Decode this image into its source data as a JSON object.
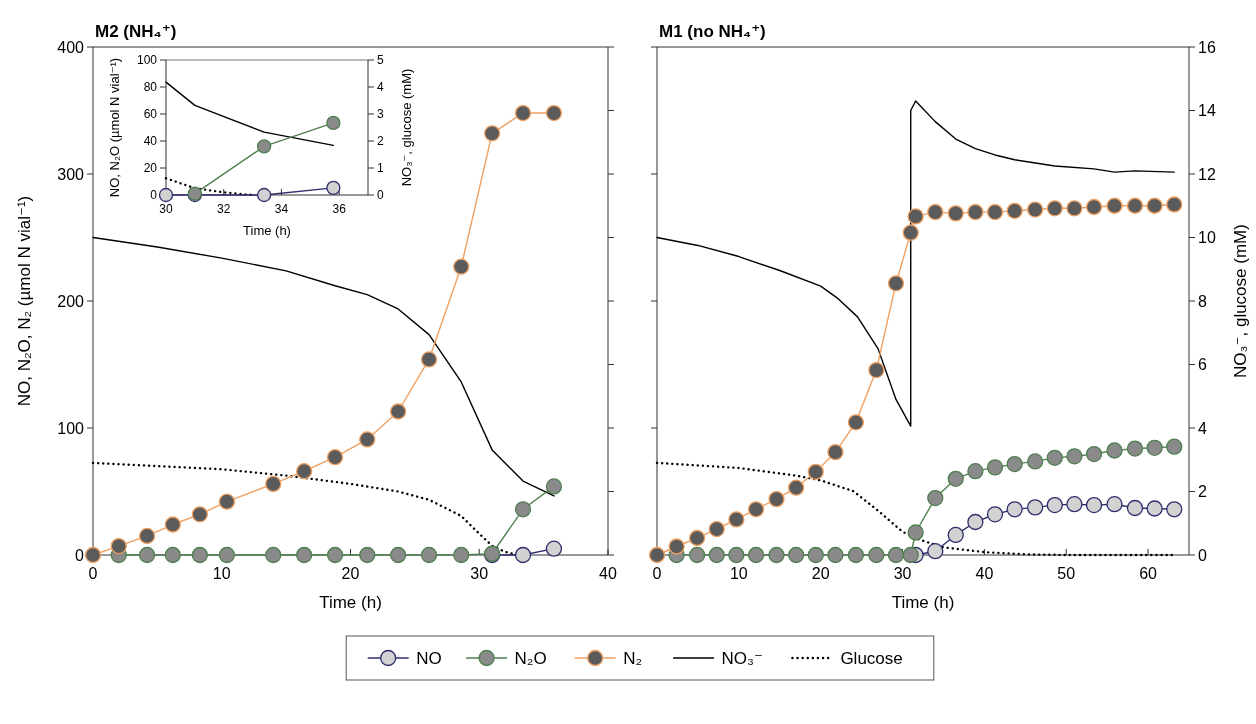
{
  "chart_data": [
    {
      "type": "line",
      "title": "M2 (NH₄⁺)",
      "xlabel": "Time (h)",
      "ylabel": "NO, N₂O, N₂ (µmol N vial⁻¹)",
      "xlim": [
        0,
        40
      ],
      "xticks": [
        0,
        10,
        20,
        30,
        40
      ],
      "ylim": [
        0,
        400
      ],
      "yticks": [
        0,
        100,
        200,
        300,
        400
      ],
      "y2lim": [
        0,
        16
      ],
      "tick_labels": "xy",
      "legend": "bottom",
      "series": [
        {
          "name": "NO",
          "color": "#2e2e6e",
          "marker": "circle",
          "x": [
            31.0,
            33.4,
            35.8
          ],
          "values": [
            0,
            0,
            5
          ]
        },
        {
          "name": "N₂O",
          "color": "#4f7f4f",
          "marker": "circle",
          "x": [
            2.0,
            4.2,
            6.2,
            8.3,
            10.4,
            14.0,
            16.4,
            18.8,
            21.3,
            23.7,
            26.1,
            28.6,
            31.0,
            33.4,
            35.8
          ],
          "values": [
            0,
            0,
            0,
            0,
            0,
            0,
            0,
            0,
            0,
            0,
            0,
            0,
            1,
            36,
            54
          ]
        },
        {
          "name": "N₂",
          "color": "#f0a060",
          "marker": "circle",
          "x": [
            0,
            2.0,
            4.2,
            6.2,
            8.3,
            10.4,
            14.0,
            16.4,
            18.8,
            21.3,
            23.7,
            26.1,
            28.6,
            31.0,
            33.4,
            35.8
          ],
          "values": [
            0,
            7,
            15,
            24,
            32,
            42,
            56,
            66,
            77,
            91,
            113,
            154,
            227,
            332,
            348,
            348
          ]
        },
        {
          "name": "NO₃⁻",
          "color": "#000000",
          "marker": "none",
          "line_style": "solid",
          "axis": "y2",
          "x": [
            0,
            5,
            10,
            15,
            18.8,
            21.3,
            23.7,
            26.1,
            28.6,
            31.0,
            33.4,
            35.8
          ],
          "values": [
            10.0,
            9.7,
            9.35,
            8.95,
            8.48,
            8.2,
            7.75,
            6.94,
            5.45,
            3.31,
            2.33,
            1.86
          ]
        },
        {
          "name": "Glucose",
          "color": "#000000",
          "marker": "none",
          "line_style": "dotted",
          "axis": "y2",
          "x": [
            0,
            10,
            15,
            20,
            23.7,
            26.1,
            28.6,
            30,
            31,
            32,
            33
          ],
          "values": [
            2.9,
            2.7,
            2.5,
            2.24,
            2.0,
            1.74,
            1.23,
            0.67,
            0.29,
            0.1,
            0
          ]
        }
      ]
    },
    {
      "type": "line",
      "title": "M1 (no NH₄⁺)",
      "xlabel": "Time (h)",
      "y2label": "NO₃⁻, glucose (mM)",
      "xlim": [
        0,
        65
      ],
      "xticks": [
        0,
        10,
        20,
        30,
        40,
        50,
        60
      ],
      "ylim": [
        0,
        400
      ],
      "y2lim": [
        0,
        16
      ],
      "y2ticks": [
        0,
        2,
        4,
        6,
        8,
        10,
        12,
        14,
        16
      ],
      "series": [
        {
          "color": "#2e2e6e",
          "marker": "circle",
          "x": [
            31.6,
            34.0,
            36.5,
            38.9,
            41.3,
            43.7,
            46.2,
            48.6,
            51.0,
            53.4,
            55.9,
            58.4,
            60.8,
            63.2
          ],
          "values": [
            0,
            3,
            15.8,
            26,
            32,
            36,
            37.5,
            39.3,
            40,
            39.3,
            40,
            37,
            36.6,
            36
          ]
        },
        {
          "color": "#4f7f4f",
          "marker": "circle",
          "x": [
            2.4,
            4.9,
            7.3,
            9.7,
            12.1,
            14.6,
            17.0,
            19.4,
            21.8,
            24.3,
            26.8,
            29.2,
            31.0,
            31.6,
            34.0,
            36.5,
            38.9,
            41.3,
            43.7,
            46.2,
            48.6,
            51.0,
            53.4,
            55.9,
            58.4,
            60.8,
            63.2
          ],
          "values": [
            0,
            0,
            0,
            0,
            0,
            0,
            0,
            0,
            0,
            0,
            0,
            0,
            0,
            17.7,
            44.8,
            60,
            66,
            69,
            71.6,
            73.7,
            76.5,
            77.7,
            79.5,
            82.3,
            83.8,
            84.4,
            85.3
          ]
        },
        {
          "color": "#f0a060",
          "marker": "circle",
          "x": [
            0,
            2.4,
            4.9,
            7.3,
            9.7,
            12.1,
            14.6,
            17.0,
            19.4,
            21.8,
            24.3,
            26.8,
            29.2,
            31.0,
            31.6,
            34.0,
            36.5,
            38.9,
            41.3,
            43.7,
            46.2,
            48.6,
            51.0,
            53.4,
            55.9,
            58.4,
            60.8,
            63.2
          ],
          "values": [
            0,
            6.7,
            13.4,
            20.4,
            28,
            36,
            44,
            53,
            65.5,
            81,
            104.5,
            145.6,
            213.9,
            253.8,
            266.6,
            270,
            269,
            270,
            270,
            271,
            272,
            273,
            273,
            274,
            275,
            275,
            275,
            276
          ]
        },
        {
          "color": "#000000",
          "marker": "none",
          "line_style": "solid",
          "axis": "y2",
          "x": [
            0,
            5,
            10,
            15,
            20,
            22,
            24.5,
            27,
            29.2,
            31.0,
            31.0,
            31.6,
            34.0,
            36.5,
            38.9,
            41.3,
            43.7,
            48.6,
            53.4,
            55.9,
            58.4,
            63.2
          ],
          "values": [
            10.0,
            9.75,
            9.4,
            8.96,
            8.47,
            8.1,
            7.5,
            6.5,
            4.9,
            4.06,
            14.0,
            14.3,
            13.65,
            13.1,
            12.8,
            12.6,
            12.45,
            12.25,
            12.16,
            12.06,
            12.1,
            12.06
          ]
        },
        {
          "color": "#000000",
          "marker": "none",
          "line_style": "dotted",
          "axis": "y2",
          "x": [
            0,
            10,
            17,
            20,
            24,
            27,
            30,
            32,
            35,
            40,
            45,
            50,
            63.2
          ],
          "values": [
            2.9,
            2.74,
            2.5,
            2.35,
            2.01,
            1.4,
            0.73,
            0.49,
            0.24,
            0.09,
            0.02,
            0,
            0
          ]
        }
      ]
    },
    {
      "type": "line",
      "xlabel": "Time (h)",
      "ylabel": "NO, N₂O (µmol N vial⁻¹)",
      "y2label": "NO₃⁻, glucose (mM)",
      "xlim": [
        30,
        37
      ],
      "xticks": [
        30,
        32,
        34,
        36
      ],
      "ylim": [
        0,
        100
      ],
      "yticks": [
        0,
        20,
        40,
        60,
        80,
        100
      ],
      "y2lim": [
        0,
        5
      ],
      "y2ticks": [
        0,
        1,
        2,
        3,
        4,
        5
      ],
      "series": [
        {
          "color": "#2e2e6e",
          "marker": "circle",
          "x": [
            30,
            31.0,
            33.4,
            35.8
          ],
          "values": [
            0,
            0,
            0,
            5.3
          ]
        },
        {
          "color": "#4f7f4f",
          "marker": "circle",
          "x": [
            31.0,
            33.4,
            35.8
          ],
          "values": [
            1,
            36,
            53.4
          ]
        },
        {
          "color": "#000000",
          "marker": "none",
          "line_style": "solid",
          "axis": "y2",
          "x": [
            30,
            31.0,
            33.4,
            35.8
          ],
          "values": [
            4.18,
            3.32,
            2.33,
            1.84
          ]
        },
        {
          "color": "#000000",
          "marker": "none",
          "line_style": "dotted",
          "axis": "y2",
          "x": [
            30,
            31,
            32,
            33
          ],
          "values": [
            0.62,
            0.25,
            0.1,
            0
          ]
        }
      ]
    }
  ]
}
